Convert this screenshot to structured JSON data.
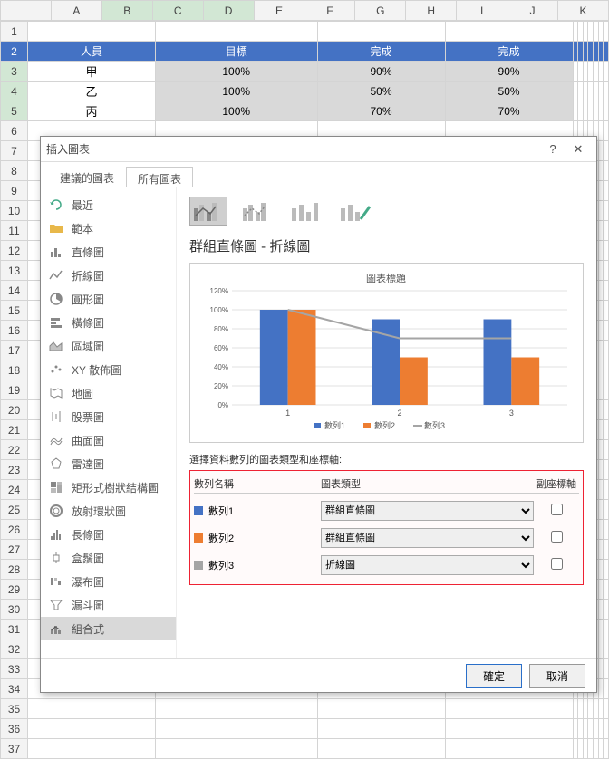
{
  "spreadsheet": {
    "columns": [
      "A",
      "B",
      "C",
      "D",
      "E",
      "F",
      "G",
      "H",
      "I",
      "J",
      "K"
    ],
    "row_count": 37,
    "headers": [
      "人員",
      "目標",
      "完成",
      "完成"
    ],
    "rows": [
      [
        "甲",
        "100%",
        "90%",
        "90%"
      ],
      [
        "乙",
        "100%",
        "50%",
        "50%"
      ],
      [
        "丙",
        "100%",
        "70%",
        "70%"
      ]
    ],
    "selection": {
      "cols": [
        1,
        2,
        3
      ],
      "rows": [
        3,
        4,
        5
      ]
    }
  },
  "dialog": {
    "title": "插入圖表",
    "help": "?",
    "close": "✕",
    "tabs": {
      "recommended": "建議的圖表",
      "all": "所有圖表"
    },
    "sidebar": [
      {
        "icon": "undo",
        "label": "最近"
      },
      {
        "icon": "folder",
        "label": "範本"
      },
      {
        "icon": "bar",
        "label": "直條圖"
      },
      {
        "icon": "line",
        "label": "折線圖"
      },
      {
        "icon": "pie",
        "label": "圓形圖"
      },
      {
        "icon": "hbar",
        "label": "橫條圖"
      },
      {
        "icon": "area",
        "label": "區域圖"
      },
      {
        "icon": "scatter",
        "label": "XY 散佈圖"
      },
      {
        "icon": "map",
        "label": "地圖"
      },
      {
        "icon": "stock",
        "label": "股票圖"
      },
      {
        "icon": "surface",
        "label": "曲面圖"
      },
      {
        "icon": "radar",
        "label": "雷達圖"
      },
      {
        "icon": "tree",
        "label": "矩形式樹狀結構圖"
      },
      {
        "icon": "sun",
        "label": "放射環狀圖"
      },
      {
        "icon": "histo",
        "label": "長條圖"
      },
      {
        "icon": "box",
        "label": "盒鬚圖"
      },
      {
        "icon": "water",
        "label": "瀑布圖"
      },
      {
        "icon": "funnel",
        "label": "漏斗圖"
      },
      {
        "icon": "combo",
        "label": "組合式"
      }
    ],
    "sidebar_selected": 18,
    "chart_name": "群組直條圖 - 折線圖",
    "preview": {
      "title": "圖表標題",
      "categories": [
        "1",
        "2",
        "3"
      ],
      "series": [
        {
          "name": "數列1",
          "type": "bar",
          "color": "#4472c4",
          "values": [
            100,
            90,
            90
          ]
        },
        {
          "name": "數列2",
          "type": "bar",
          "color": "#ed7d31",
          "values": [
            100,
            50,
            50
          ]
        },
        {
          "name": "數列3",
          "type": "line",
          "color": "#a5a5a5",
          "values": [
            100,
            70,
            70
          ]
        }
      ],
      "ymax": 120,
      "ytick": 20,
      "ylabel_suffix": "%",
      "bg": "#ffffff",
      "grid": "#e0e0e0",
      "title_fontsize": 11,
      "legend_fontsize": 9
    },
    "config": {
      "label": "選擇資料數列的圖表類型和座標軸:",
      "col_name": "數列名稱",
      "col_type": "圖表類型",
      "col_axis": "副座標軸",
      "series": [
        {
          "name": "數列1",
          "color": "#4472c4",
          "type": "群組直條圖",
          "secondary": false
        },
        {
          "name": "數列2",
          "color": "#ed7d31",
          "type": "群組直條圖",
          "secondary": false
        },
        {
          "name": "數列3",
          "color": "#a5a5a5",
          "type": "折線圖",
          "secondary": false
        }
      ],
      "type_options": [
        "群組直條圖",
        "折線圖"
      ]
    },
    "buttons": {
      "ok": "確定",
      "cancel": "取消"
    }
  }
}
